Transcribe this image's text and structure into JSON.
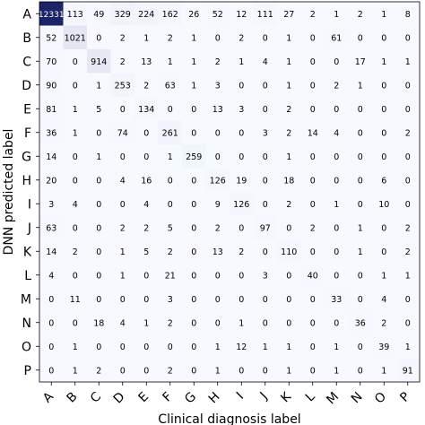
{
  "chart_data": {
    "type": "heatmap",
    "xlabel": "Clinical diagnosis label",
    "ylabel": "DNN predicted label",
    "x_categories": [
      "A",
      "B",
      "C",
      "D",
      "E",
      "F",
      "G",
      "H",
      "I",
      "J",
      "K",
      "L",
      "M",
      "N",
      "O",
      "P"
    ],
    "y_categories": [
      "A",
      "B",
      "C",
      "D",
      "E",
      "F",
      "G",
      "H",
      "I",
      "J",
      "K",
      "L",
      "M",
      "N",
      "O",
      "P"
    ],
    "grid": false,
    "legend": "none",
    "colors": {
      "low": "#f6f9ff",
      "high": "#1b2466",
      "text_dark": "#000000",
      "text_light": "#ffffff"
    },
    "values": [
      [
        12331,
        113,
        49,
        329,
        224,
        162,
        26,
        52,
        12,
        111,
        27,
        2,
        1,
        2,
        1,
        8
      ],
      [
        52,
        1021,
        0,
        2,
        1,
        2,
        1,
        0,
        2,
        0,
        1,
        0,
        61,
        0,
        0,
        0
      ],
      [
        70,
        0,
        914,
        2,
        13,
        1,
        1,
        2,
        1,
        4,
        1,
        0,
        0,
        17,
        1,
        1
      ],
      [
        90,
        0,
        1,
        253,
        2,
        63,
        1,
        3,
        0,
        0,
        1,
        0,
        2,
        1,
        0,
        0
      ],
      [
        81,
        1,
        5,
        0,
        134,
        0,
        0,
        13,
        3,
        0,
        2,
        0,
        0,
        0,
        0,
        0
      ],
      [
        36,
        1,
        0,
        74,
        0,
        261,
        0,
        0,
        0,
        3,
        2,
        14,
        4,
        0,
        0,
        2
      ],
      [
        14,
        0,
        1,
        0,
        0,
        1,
        259,
        0,
        0,
        0,
        1,
        0,
        0,
        0,
        0,
        0
      ],
      [
        20,
        0,
        0,
        4,
        16,
        0,
        0,
        126,
        19,
        0,
        18,
        0,
        0,
        0,
        6,
        0
      ],
      [
        3,
        4,
        0,
        0,
        4,
        0,
        0,
        9,
        126,
        0,
        2,
        0,
        1,
        0,
        10,
        0
      ],
      [
        63,
        0,
        0,
        2,
        2,
        5,
        0,
        2,
        0,
        97,
        0,
        2,
        0,
        1,
        0,
        2
      ],
      [
        14,
        2,
        0,
        1,
        5,
        2,
        0,
        13,
        2,
        0,
        110,
        0,
        0,
        1,
        0,
        2
      ],
      [
        4,
        0,
        0,
        1,
        0,
        21,
        0,
        0,
        0,
        3,
        0,
        40,
        0,
        0,
        1,
        1
      ],
      [
        0,
        11,
        0,
        0,
        0,
        3,
        0,
        0,
        0,
        0,
        0,
        0,
        33,
        0,
        4,
        0
      ],
      [
        0,
        0,
        18,
        4,
        1,
        2,
        0,
        0,
        1,
        0,
        0,
        0,
        0,
        36,
        2,
        0
      ],
      [
        0,
        1,
        0,
        0,
        0,
        0,
        0,
        1,
        12,
        1,
        1,
        0,
        1,
        0,
        39,
        1
      ],
      [
        0,
        1,
        2,
        0,
        0,
        2,
        0,
        1,
        0,
        0,
        1,
        0,
        1,
        0,
        1,
        91
      ]
    ]
  }
}
